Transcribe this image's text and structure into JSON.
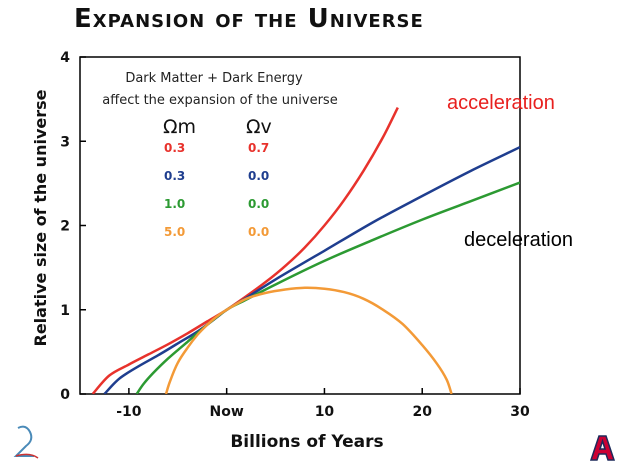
{
  "slide": {
    "title": "Expansion of the Universe",
    "label_acceleration": "acceleration",
    "label_deceleration": "deceleration",
    "label_acceleration_color": "#e8201e",
    "label_deceleration_color": "#000000"
  },
  "chart_data": {
    "type": "line",
    "xlabel": "Billions of Years",
    "ylabel": "Relative size of the universe",
    "xlim": [
      -15,
      30
    ],
    "ylim": [
      0,
      4
    ],
    "x_ticks": [
      -10,
      0,
      10,
      20,
      30
    ],
    "x_tick_labels": [
      "-10",
      "Now",
      "10",
      "20",
      "30"
    ],
    "y_ticks": [
      0,
      1,
      2,
      3,
      4
    ],
    "y_tick_labels": [
      "0",
      "1",
      "2",
      "3",
      "4"
    ],
    "grid": false,
    "legend": {
      "title_line1": "Dark Matter + Dark Energy",
      "title_line2": "affect the expansion of the universe",
      "col1_header": "Ωm",
      "col2_header": "Ωv",
      "placement": "top-left"
    },
    "series": [
      {
        "omega_m": "0.3",
        "omega_v": "0.7",
        "color": "#e8322c",
        "x": [
          -13.7,
          -12,
          -10,
          -8,
          -6,
          -4,
          -2,
          0,
          2,
          4,
          6,
          8,
          10,
          12,
          14,
          16,
          17.5
        ],
        "y": [
          0,
          0.22,
          0.35,
          0.47,
          0.59,
          0.72,
          0.86,
          1.0,
          1.16,
          1.33,
          1.52,
          1.74,
          2.0,
          2.3,
          2.65,
          3.05,
          3.4
        ]
      },
      {
        "omega_m": "0.3",
        "omega_v": "0.0",
        "color": "#1f3e8f",
        "x": [
          -12.5,
          -11,
          -9,
          -7,
          -5,
          -3,
          -1,
          0,
          2,
          5,
          10,
          15,
          20,
          25,
          30
        ],
        "y": [
          0,
          0.18,
          0.33,
          0.46,
          0.6,
          0.74,
          0.91,
          1.0,
          1.14,
          1.36,
          1.7,
          2.04,
          2.35,
          2.65,
          2.93
        ]
      },
      {
        "omega_m": "1.0",
        "omega_v": "0.0",
        "color": "#2c9a32",
        "x": [
          -9.2,
          -8.5,
          -7.5,
          -6,
          -4,
          -2,
          0,
          2,
          5,
          10,
          15,
          20,
          25,
          30
        ],
        "y": [
          0,
          0.12,
          0.25,
          0.42,
          0.62,
          0.82,
          1.0,
          1.12,
          1.3,
          1.58,
          1.83,
          2.07,
          2.29,
          2.51
        ]
      },
      {
        "omega_m": "5.0",
        "omega_v": "0.0",
        "color": "#f39a37",
        "x": [
          -6.2,
          -5.8,
          -5,
          -4,
          -3,
          -2,
          -1,
          0,
          2,
          4,
          6,
          8,
          10,
          12,
          14,
          16,
          18,
          20,
          21.5,
          22.5,
          23
        ],
        "y": [
          0,
          0.15,
          0.37,
          0.55,
          0.7,
          0.82,
          0.92,
          1.0,
          1.13,
          1.2,
          1.24,
          1.26,
          1.25,
          1.21,
          1.13,
          1.0,
          0.83,
          0.58,
          0.36,
          0.17,
          0
        ]
      }
    ]
  }
}
